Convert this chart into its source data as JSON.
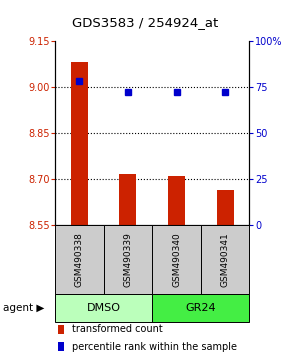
{
  "title": "GDS3583 / 254924_at",
  "samples": [
    "GSM490338",
    "GSM490339",
    "GSM490340",
    "GSM490341"
  ],
  "bar_values": [
    9.08,
    8.715,
    8.71,
    8.662
  ],
  "bar_base": 8.55,
  "bar_color": "#cc2200",
  "dot_values": [
    78,
    72,
    72,
    72
  ],
  "dot_color": "#0000cc",
  "ylim_left": [
    8.55,
    9.15
  ],
  "ylim_right": [
    0,
    100
  ],
  "yticks_left": [
    8.55,
    8.7,
    8.85,
    9.0,
    9.15
  ],
  "yticks_right": [
    0,
    25,
    50,
    75,
    100
  ],
  "ytick_labels_right": [
    "0",
    "25",
    "50",
    "75",
    "100%"
  ],
  "grid_values": [
    9.0,
    8.85,
    8.7
  ],
  "agent_groups": [
    {
      "label": "DMSO",
      "indices": [
        0,
        1
      ],
      "color": "#bbffbb"
    },
    {
      "label": "GR24",
      "indices": [
        2,
        3
      ],
      "color": "#44ee44"
    }
  ],
  "agent_label": "agent",
  "legend_bar_label": "transformed count",
  "legend_dot_label": "percentile rank within the sample",
  "bg_sample_box": "#cccccc",
  "left_tick_color": "#cc2200",
  "right_tick_color": "#0000cc",
  "bar_width": 0.35
}
